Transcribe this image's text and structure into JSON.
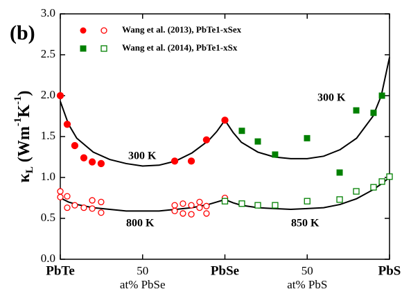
{
  "chart_data": {
    "type": "scatter",
    "panel_label": "(b)",
    "ylabel": [
      "κ",
      "L",
      " (Wm",
      "-1",
      "K",
      "-1",
      ")"
    ],
    "xlim": [
      0,
      200
    ],
    "xticks": [
      {
        "value": 0,
        "label": "PbTe"
      },
      50,
      {
        "value": 100,
        "label": "PbSe"
      },
      {
        "value": 150,
        "label": "50"
      },
      {
        "value": 200,
        "label": "PbS"
      }
    ],
    "xlabels": [
      "at% PbSe",
      "at% PbS"
    ],
    "ylim": [
      0,
      3
    ],
    "yticks": [
      {
        "value": 0,
        "label": "0.0"
      },
      {
        "value": 0.5,
        "label": "0.5"
      },
      {
        "value": 1,
        "label": "1.0"
      },
      {
        "value": 1.5,
        "label": "1.5"
      },
      {
        "value": 2,
        "label": "2.0"
      },
      {
        "value": 2.5,
        "label": "2.5"
      },
      {
        "value": 3,
        "label": "3.0"
      }
    ],
    "series": [
      {
        "name": "Wang et al. (2013), PbTe1-xSex",
        "color": "#ff0000",
        "filled": true,
        "x": [
          0,
          4.2,
          8.8,
          14.3,
          19.4,
          24.8,
          69.5,
          79.6,
          88.8,
          100
        ],
        "values": [
          2.0,
          1.65,
          1.39,
          1.24,
          1.19,
          1.17,
          1.2,
          1.2,
          1.46,
          1.7
        ]
      },
      {
        "name": "Wang et al. (2014), PbTe1-xSx",
        "color": "#008000",
        "filled": true,
        "x": [
          110.3,
          120,
          130.5,
          149.9,
          169.7,
          179.8,
          190.3,
          195.4
        ],
        "values": [
          1.57,
          1.44,
          1.28,
          1.48,
          1.06,
          1.82,
          1.79,
          2.0
        ]
      },
      {
        "color": "#ff0000",
        "filled": false,
        "x": [
          0,
          0,
          4.2,
          4.2,
          8.8,
          14.3,
          19.4,
          19.4,
          24.8,
          24.8,
          69.5,
          69.5,
          74.5,
          74.5,
          79.6,
          79.6,
          84.6,
          84.6,
          88.8,
          88.8,
          100
        ],
        "values": [
          0.83,
          0.76,
          0.77,
          0.63,
          0.66,
          0.63,
          0.72,
          0.62,
          0.7,
          0.57,
          0.66,
          0.59,
          0.68,
          0.56,
          0.66,
          0.55,
          0.7,
          0.63,
          0.65,
          0.56,
          0.75
        ]
      },
      {
        "color": "#008000",
        "filled": false,
        "x": [
          100,
          110.3,
          120,
          130.5,
          150,
          169.7,
          179.8,
          190.3,
          195.4,
          200
        ],
        "values": [
          0.71,
          0.68,
          0.66,
          0.66,
          0.71,
          0.73,
          0.83,
          0.88,
          0.95,
          1.01
        ]
      }
    ],
    "curves": [
      {
        "color": "#000000",
        "x": [
          0,
          5,
          10,
          20,
          30,
          40,
          50,
          60,
          70,
          80,
          90,
          95,
          100,
          105,
          110,
          120,
          130,
          140,
          150,
          160,
          170,
          180,
          190,
          195,
          200
        ],
        "values": [
          1.93,
          1.65,
          1.48,
          1.31,
          1.22,
          1.17,
          1.14,
          1.15,
          1.2,
          1.3,
          1.45,
          1.56,
          1.7,
          1.55,
          1.43,
          1.31,
          1.25,
          1.23,
          1.23,
          1.26,
          1.34,
          1.48,
          1.75,
          2.0,
          2.47
        ]
      },
      {
        "color": "#000000",
        "x": [
          0,
          5,
          10,
          20,
          30,
          40,
          50,
          60,
          70,
          80,
          90,
          95,
          100,
          105,
          110,
          120,
          130,
          140,
          150,
          160,
          170,
          180,
          190,
          195,
          200
        ],
        "values": [
          0.75,
          0.7,
          0.67,
          0.63,
          0.61,
          0.59,
          0.59,
          0.59,
          0.61,
          0.63,
          0.67,
          0.7,
          0.73,
          0.69,
          0.66,
          0.63,
          0.62,
          0.61,
          0.62,
          0.63,
          0.67,
          0.74,
          0.85,
          0.92,
          1.0
        ]
      }
    ],
    "annotations": [
      "300 K",
      "800 K",
      "300 K",
      "850 K"
    ]
  }
}
